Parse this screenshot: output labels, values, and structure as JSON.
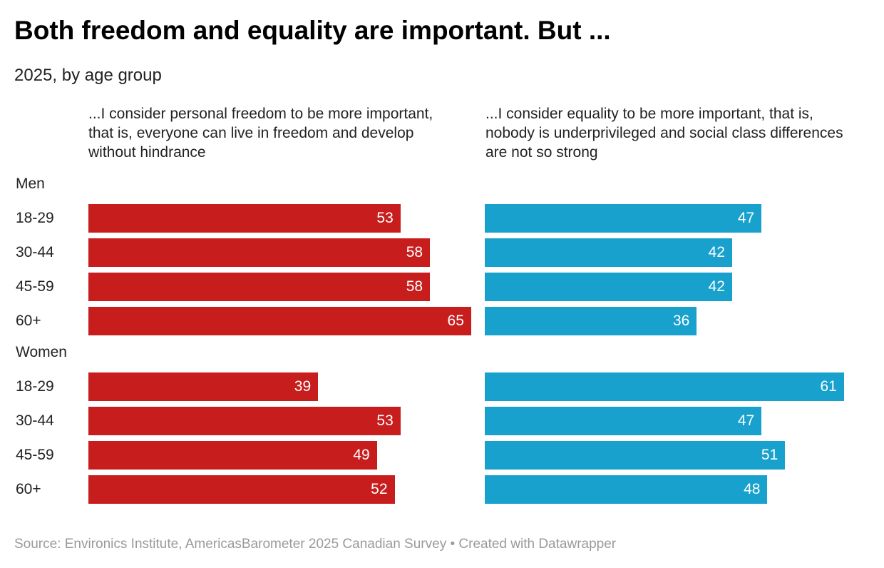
{
  "title": "Both freedom and equality are important. But ...",
  "subtitle": "2025, by age group",
  "footer": "Source: Environics Institute, AmericasBarometer 2025 Canadian Survey • Created with Datawrapper",
  "chart_data": {
    "type": "bar",
    "colors": {
      "freedom": "#c71e1d",
      "equality": "#18a1cd"
    },
    "series": [
      {
        "name": "...I consider personal freedom to be more important, that is, everyone can live in freedom and develop without hindrance",
        "key": "freedom"
      },
      {
        "name": "...I consider equality to be more important, that is, nobody is underprivileged and social class differences are not so strong",
        "key": "equality"
      }
    ],
    "groups": [
      {
        "name": "Men",
        "rows": [
          {
            "label": "18-29",
            "freedom": 53,
            "equality": 47
          },
          {
            "label": "30-44",
            "freedom": 58,
            "equality": 42
          },
          {
            "label": "45-59",
            "freedom": 58,
            "equality": 42
          },
          {
            "label": "60+",
            "freedom": 65,
            "equality": 36
          }
        ]
      },
      {
        "name": "Women",
        "rows": [
          {
            "label": "18-29",
            "freedom": 39,
            "equality": 61
          },
          {
            "label": "30-44",
            "freedom": 53,
            "equality": 47
          },
          {
            "label": "45-59",
            "freedom": 49,
            "equality": 51
          },
          {
            "label": "60+",
            "freedom": 52,
            "equality": 48
          }
        ]
      }
    ],
    "xlim": [
      0,
      65
    ]
  }
}
